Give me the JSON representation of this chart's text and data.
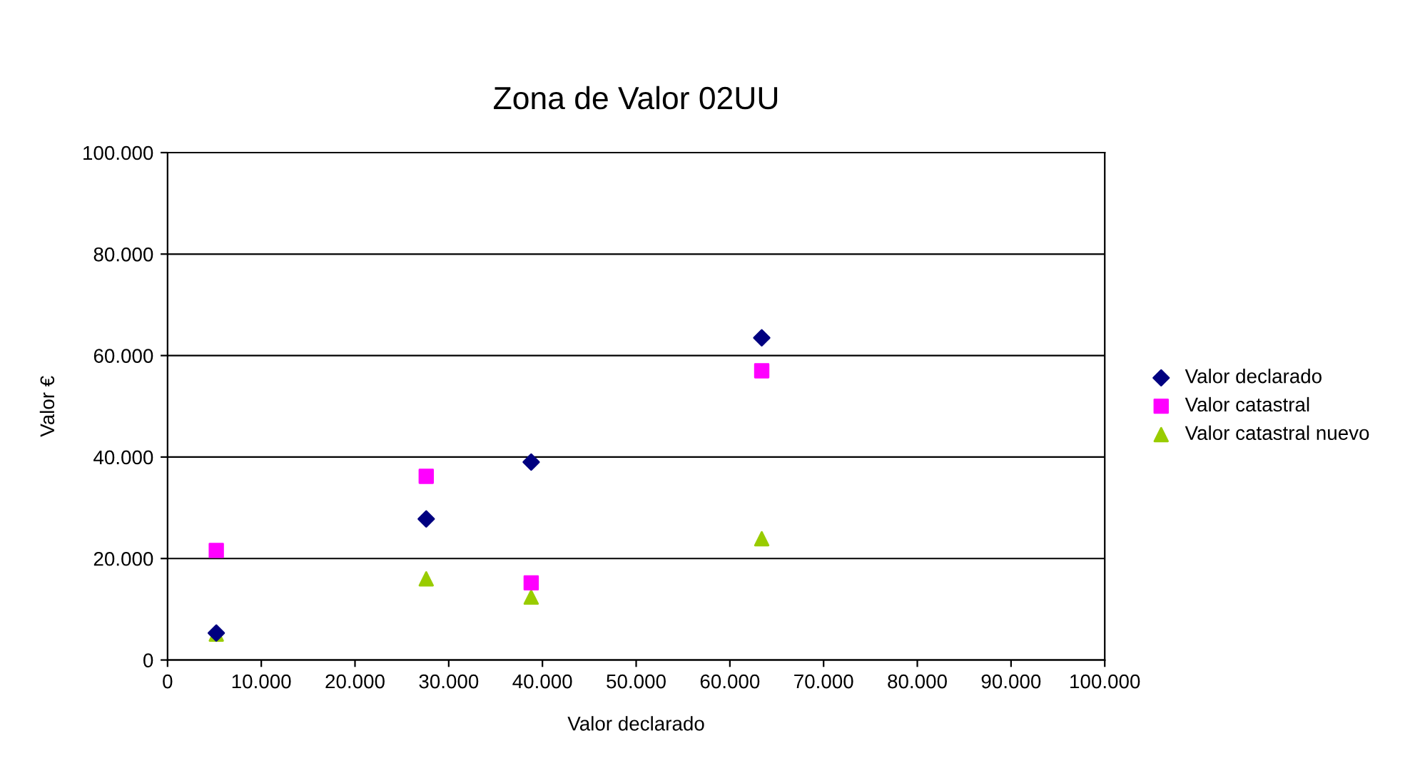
{
  "chart_data": {
    "type": "scatter",
    "title": "Zona de Valor 02UU",
    "xlabel": "Valor declarado",
    "ylabel": "Valor €",
    "series": [
      {
        "name": "Valor declarado",
        "color": "#000080",
        "marker": "diamond",
        "x": [
          5200,
          27600,
          38800,
          63400
        ],
        "values": [
          5300,
          27800,
          39000,
          63500
        ]
      },
      {
        "name": "Valor catastral",
        "color": "#ff00ff",
        "marker": "square",
        "x": [
          5200,
          27600,
          38800,
          63400
        ],
        "values": [
          21600,
          36200,
          15200,
          57000
        ]
      },
      {
        "name": "Valor catastral nuevo",
        "color": "#99cc00",
        "marker": "triangle",
        "x": [
          5200,
          27600,
          38800,
          63400
        ],
        "values": [
          5100,
          16000,
          12400,
          23900
        ]
      }
    ],
    "xlim": [
      0,
      100000
    ],
    "xticks": [
      0,
      {
        "value": 10000,
        "label": "10.000"
      },
      {
        "value": 20000,
        "label": "20.000"
      },
      {
        "value": 30000,
        "label": "30.000"
      },
      {
        "value": 40000,
        "label": "40.000"
      },
      {
        "value": 50000,
        "label": "50.000"
      },
      {
        "value": 60000,
        "label": "60.000"
      },
      {
        "value": 70000,
        "label": "70.000"
      },
      {
        "value": 80000,
        "label": "80.000"
      },
      {
        "value": 90000,
        "label": "90.000"
      },
      {
        "value": 100000,
        "label": "100.000"
      }
    ],
    "ylim": [
      0,
      100000
    ],
    "yticks": [
      0,
      {
        "value": 20000,
        "label": "20.000"
      },
      {
        "value": 40000,
        "label": "40.000"
      },
      {
        "value": 60000,
        "label": "60.000"
      },
      {
        "value": 80000,
        "label": "80.000"
      },
      {
        "value": 100000,
        "label": "100.000"
      }
    ],
    "grid": "y",
    "legend": "right"
  }
}
